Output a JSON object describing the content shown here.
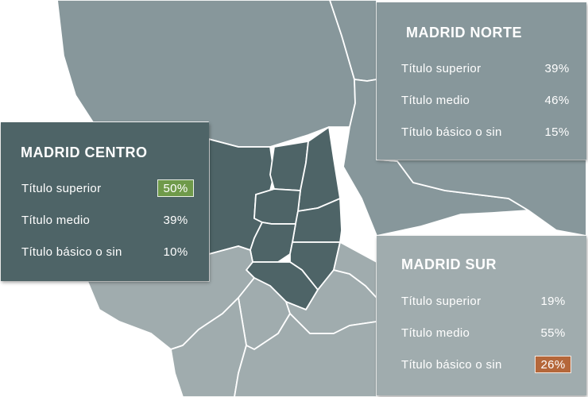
{
  "map": {
    "colors": {
      "background": "#ffffff",
      "norte": "#87979b",
      "centro": "#4e6467",
      "sur": "#a0acae",
      "borders": "#ffffff",
      "highlight_max": "#6f9a4a",
      "highlight_alt": "#b5673a"
    }
  },
  "regions": {
    "norte": {
      "title": "MADRID NORTE",
      "rows": [
        {
          "label": "Título superior",
          "value": "39%"
        },
        {
          "label": "Título medio",
          "value": "46%"
        },
        {
          "label": "Título básico o sin",
          "value": "15%"
        }
      ]
    },
    "centro": {
      "title": "MADRID CENTRO",
      "rows": [
        {
          "label": "Título superior",
          "value": "50%"
        },
        {
          "label": "Título medio",
          "value": "39%"
        },
        {
          "label": "Título básico o sin",
          "value": "10%"
        }
      ]
    },
    "sur": {
      "title": "MADRID SUR",
      "rows": [
        {
          "label": "Título superior",
          "value": "19%"
        },
        {
          "label": "Título medio",
          "value": "55%"
        },
        {
          "label": "Título básico o sin",
          "value": "26%"
        }
      ]
    }
  }
}
